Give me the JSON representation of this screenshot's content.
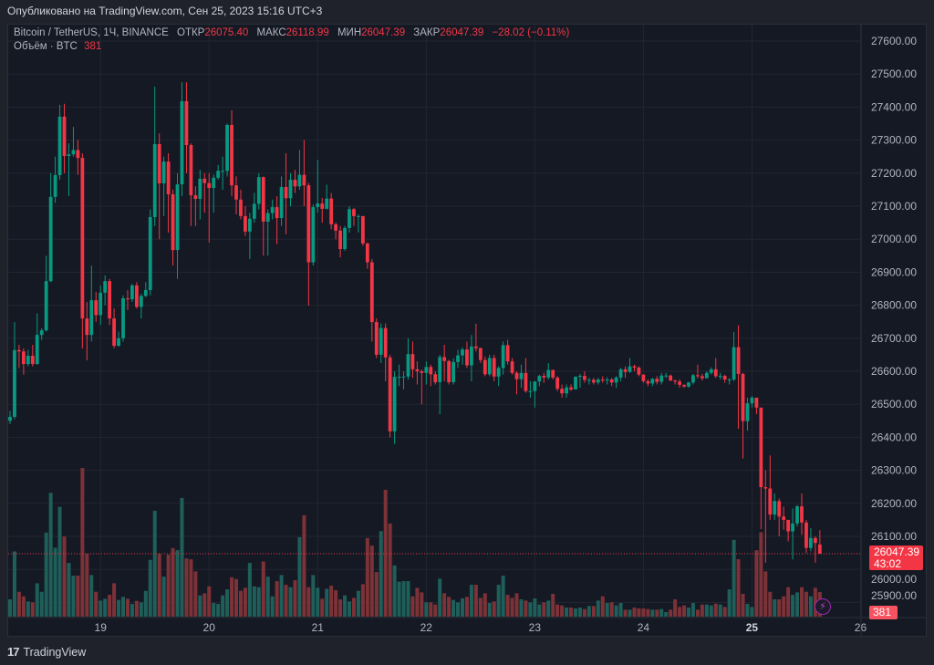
{
  "published": "Опубликовано на TradingView.com, Сен 25, 2023 15:16 UTC+3",
  "legend": {
    "symbol": "Bitcoin / TetherUS, 1Ч, BINANCE",
    "open_label": "ОТКР",
    "open": "26075.40",
    "high_label": "МАКС",
    "high": "26118.99",
    "low_label": "МИН",
    "low": "26047.39",
    "close_label": "ЗАКР",
    "close": "26047.39",
    "change": "−28.02 (−0.11%)",
    "volume_label": "Объём · BTC",
    "volume": "381"
  },
  "price_label": {
    "price": "26047.39",
    "countdown": "43:02"
  },
  "volume_badge": "381",
  "footer": {
    "logo_text": "TradingView"
  },
  "colors": {
    "up": "#089981",
    "down": "#f23645",
    "volume_up": "#1e5f5a",
    "volume_down": "#7d3237",
    "background": "#151924",
    "grid": "#222631",
    "last_price_line": "#f23645",
    "accent_icon": "#9c27b0"
  },
  "icons": {
    "alert": "lightning-icon",
    "logo": "tradingview-logo-icon"
  },
  "chart_data": {
    "type": "candlestick",
    "interval": "1h",
    "y_ticks": [
      "25900.00",
      "26000.00",
      "26100.00",
      "26200.00",
      "26300.00",
      "26400.00",
      "26500.00",
      "26600.00",
      "26700.00",
      "26800.00",
      "26900.00",
      "27000.00",
      "27100.00",
      "27200.00",
      "27300.00",
      "27400.00",
      "27500.00",
      "27600.00"
    ],
    "x_ticks": [
      "19",
      "20",
      "21",
      "22",
      "23",
      "24",
      "25",
      "26"
    ],
    "ylim": [
      25900,
      27600
    ],
    "grid": true,
    "last_price": 26047.39,
    "ohlc": [
      [
        26450,
        26480,
        26440,
        26462
      ],
      [
        26462,
        26749,
        26455,
        26664
      ],
      [
        26664,
        26680,
        26610,
        26660
      ],
      [
        26660,
        26670,
        26590,
        26622
      ],
      [
        26622,
        26665,
        26615,
        26647
      ],
      [
        26647,
        26680,
        26615,
        26622
      ],
      [
        26622,
        26775,
        26620,
        26710
      ],
      [
        26710,
        26730,
        26695,
        26724
      ],
      [
        26724,
        26950,
        26720,
        26873
      ],
      [
        26873,
        27200,
        26870,
        27128
      ],
      [
        27128,
        27250,
        27110,
        27194
      ],
      [
        27194,
        27407,
        27180,
        27371
      ],
      [
        27371,
        27410,
        27200,
        27252
      ],
      [
        27252,
        27290,
        27130,
        27257
      ],
      [
        27257,
        27340,
        27250,
        27270
      ],
      [
        27270,
        27300,
        27195,
        27246
      ],
      [
        27246,
        27260,
        26669,
        26760
      ],
      [
        26760,
        26810,
        26633,
        26710
      ],
      [
        26710,
        26920,
        26690,
        26815
      ],
      [
        26815,
        26840,
        26750,
        26770
      ],
      [
        26770,
        26860,
        26740,
        26838
      ],
      [
        26838,
        26890,
        26800,
        26873
      ],
      [
        26873,
        26880,
        26740,
        26760
      ],
      [
        26760,
        26790,
        26670,
        26677
      ],
      [
        26677,
        26720,
        26675,
        26700
      ],
      [
        26700,
        26830,
        26690,
        26821
      ],
      [
        26821,
        26845,
        26785,
        26818
      ],
      [
        26818,
        26865,
        26810,
        26860
      ],
      [
        26860,
        26870,
        26790,
        26795
      ],
      [
        26795,
        26835,
        26760,
        26828
      ],
      [
        26828,
        26870,
        26825,
        26846
      ],
      [
        26846,
        27090,
        26830,
        27067
      ],
      [
        27067,
        27462,
        27040,
        27288
      ],
      [
        27288,
        27320,
        27000,
        27169
      ],
      [
        27169,
        27250,
        27070,
        27235
      ],
      [
        27235,
        27260,
        27020,
        27136
      ],
      [
        27136,
        27150,
        26920,
        26967
      ],
      [
        26967,
        27200,
        26880,
        27166
      ],
      [
        27166,
        27475,
        27130,
        27418
      ],
      [
        27418,
        27475,
        27200,
        27285
      ],
      [
        27285,
        27290,
        27040,
        27133
      ],
      [
        27133,
        27160,
        27040,
        27122
      ],
      [
        27122,
        27210,
        27060,
        27183
      ],
      [
        27183,
        27200,
        27080,
        27170
      ],
      [
        27170,
        27200,
        26990,
        27155
      ],
      [
        27155,
        27195,
        27080,
        27186
      ],
      [
        27186,
        27225,
        27180,
        27207
      ],
      [
        27207,
        27250,
        27150,
        27207
      ],
      [
        27207,
        27350,
        27190,
        27346
      ],
      [
        27346,
        27390,
        27130,
        27163
      ],
      [
        27163,
        27190,
        27075,
        27120
      ],
      [
        27120,
        27150,
        27060,
        27070
      ],
      [
        27070,
        27100,
        27010,
        27023
      ],
      [
        27023,
        27080,
        26940,
        27062
      ],
      [
        27062,
        27140,
        27050,
        27107
      ],
      [
        27107,
        27200,
        27090,
        27188
      ],
      [
        27188,
        27190,
        26950,
        27053
      ],
      [
        27053,
        27090,
        26950,
        27079
      ],
      [
        27079,
        27120,
        27060,
        27097
      ],
      [
        27097,
        27130,
        26985,
        27064
      ],
      [
        27064,
        27190,
        27040,
        27158
      ],
      [
        27158,
        27260,
        27015,
        27124
      ],
      [
        27124,
        27200,
        27100,
        27180
      ],
      [
        27180,
        27210,
        27140,
        27160
      ],
      [
        27160,
        27270,
        27150,
        27195
      ],
      [
        27195,
        27300,
        27100,
        27163
      ],
      [
        27163,
        27170,
        26799,
        26930
      ],
      [
        26930,
        27105,
        26920,
        27097
      ],
      [
        27097,
        27240,
        27080,
        27108
      ],
      [
        27108,
        27125,
        27050,
        27092
      ],
      [
        27092,
        27165,
        27090,
        27123
      ],
      [
        27123,
        27140,
        27030,
        27045
      ],
      [
        27045,
        27050,
        27000,
        27026
      ],
      [
        27026,
        27040,
        26945,
        26970
      ],
      [
        26970,
        27040,
        26965,
        27034
      ],
      [
        27034,
        27100,
        27020,
        27091
      ],
      [
        27091,
        27095,
        27040,
        27070
      ],
      [
        27070,
        27075,
        27020,
        27070
      ],
      [
        27070,
        27070,
        26980,
        26987
      ],
      [
        26987,
        26990,
        26910,
        26930
      ],
      [
        26930,
        26940,
        26690,
        26749
      ],
      [
        26749,
        26760,
        26640,
        26650
      ],
      [
        26650,
        26745,
        26625,
        26731
      ],
      [
        26731,
        26745,
        26570,
        26642
      ],
      [
        26642,
        26650,
        26400,
        26418
      ],
      [
        26418,
        26600,
        26380,
        26583
      ],
      [
        26583,
        26620,
        26555,
        26583
      ],
      [
        26583,
        26600,
        26545,
        26584
      ],
      [
        26584,
        26700,
        26575,
        26652
      ],
      [
        26652,
        26690,
        26580,
        26606
      ],
      [
        26606,
        26630,
        26560,
        26600
      ],
      [
        26600,
        26605,
        26500,
        26595
      ],
      [
        26595,
        26630,
        26560,
        26613
      ],
      [
        26613,
        26620,
        26555,
        26591
      ],
      [
        26591,
        26600,
        26560,
        26567
      ],
      [
        26567,
        26650,
        26470,
        26643
      ],
      [
        26643,
        26680,
        26570,
        26631
      ],
      [
        26631,
        26635,
        26560,
        26567
      ],
      [
        26567,
        26640,
        26560,
        26628
      ],
      [
        26628,
        26665,
        26610,
        26648
      ],
      [
        26648,
        26672,
        26620,
        26666
      ],
      [
        26666,
        26690,
        26610,
        26618
      ],
      [
        26618,
        26710,
        26570,
        26675
      ],
      [
        26675,
        26744,
        26660,
        26670
      ],
      [
        26670,
        26672,
        26625,
        26634
      ],
      [
        26634,
        26645,
        26585,
        26591
      ],
      [
        26591,
        26650,
        26585,
        26640
      ],
      [
        26640,
        26650,
        26570,
        26584
      ],
      [
        26584,
        26615,
        26555,
        26610
      ],
      [
        26610,
        26690,
        26590,
        26679
      ],
      [
        26679,
        26695,
        26620,
        26630
      ],
      [
        26630,
        26640,
        26590,
        26595
      ],
      [
        26595,
        26600,
        26530,
        26576
      ],
      [
        26576,
        26620,
        26550,
        26595
      ],
      [
        26595,
        26640,
        26535,
        26540
      ],
      [
        26540,
        26570,
        26520,
        26540
      ],
      [
        26540,
        26570,
        26490,
        26569
      ],
      [
        26569,
        26590,
        26555,
        26586
      ],
      [
        26586,
        26595,
        26565,
        26581
      ],
      [
        26581,
        26625,
        26575,
        26604
      ],
      [
        26604,
        26605,
        26575,
        26581
      ],
      [
        26581,
        26585,
        26540,
        26547
      ],
      [
        26547,
        26560,
        26520,
        26533
      ],
      [
        26533,
        26560,
        26520,
        26551
      ],
      [
        26551,
        26560,
        26540,
        26545
      ],
      [
        26545,
        26585,
        26545,
        26583
      ],
      [
        26583,
        26592,
        26550,
        26586
      ],
      [
        26586,
        26600,
        26565,
        26574
      ],
      [
        26574,
        26580,
        26560,
        26574
      ],
      [
        26574,
        26580,
        26560,
        26566
      ],
      [
        26566,
        26580,
        26560,
        26575
      ],
      [
        26575,
        26585,
        26565,
        26573
      ],
      [
        26573,
        26582,
        26560,
        26575
      ],
      [
        26575,
        26580,
        26555,
        26566
      ],
      [
        26566,
        26585,
        26550,
        26581
      ],
      [
        26581,
        26610,
        26570,
        26606
      ],
      [
        26606,
        26615,
        26580,
        26598
      ],
      [
        26598,
        26640,
        26595,
        26615
      ],
      [
        26615,
        26620,
        26600,
        26611
      ],
      [
        26611,
        26615,
        26585,
        26590
      ],
      [
        26590,
        26590,
        26565,
        26570
      ],
      [
        26570,
        26575,
        26555,
        26563
      ],
      [
        26563,
        26580,
        26555,
        26577
      ],
      [
        26577,
        26585,
        26560,
        26568
      ],
      [
        26568,
        26595,
        26560,
        26587
      ],
      [
        26587,
        26595,
        26580,
        26587
      ],
      [
        26587,
        26590,
        26570,
        26572
      ],
      [
        26572,
        26575,
        26560,
        26569
      ],
      [
        26569,
        26575,
        26550,
        26559
      ],
      [
        26559,
        26560,
        26550,
        26554
      ],
      [
        26554,
        26568,
        26550,
        26566
      ],
      [
        26566,
        26592,
        26560,
        26588
      ],
      [
        26588,
        26620,
        26578,
        26585
      ],
      [
        26585,
        26592,
        26572,
        26579
      ],
      [
        26579,
        26600,
        26578,
        26595
      ],
      [
        26595,
        26612,
        26590,
        26606
      ],
      [
        26606,
        26640,
        26580,
        26585
      ],
      [
        26585,
        26595,
        26575,
        26586
      ],
      [
        26586,
        26590,
        26565,
        26575
      ],
      [
        26575,
        26580,
        26560,
        26575
      ],
      [
        26575,
        26719,
        26570,
        26673
      ],
      [
        26673,
        26739,
        26426,
        26592
      ],
      [
        26592,
        26595,
        26336,
        26449
      ],
      [
        26449,
        26520,
        26420,
        26503
      ],
      [
        26503,
        26525,
        26490,
        26520
      ],
      [
        26520,
        26520,
        26470,
        26490
      ],
      [
        26490,
        26490,
        26122,
        26249
      ],
      [
        26249,
        26300,
        26020,
        26245
      ],
      [
        26245,
        26345,
        26150,
        26166
      ],
      [
        26166,
        26230,
        26150,
        26207
      ],
      [
        26207,
        26215,
        26100,
        26160
      ],
      [
        26160,
        26190,
        26120,
        26150
      ],
      [
        26150,
        26150,
        26085,
        26115
      ],
      [
        26115,
        26185,
        26030,
        26139
      ],
      [
        26139,
        26195,
        26130,
        26191
      ],
      [
        26191,
        26230,
        26105,
        26142
      ],
      [
        26142,
        26150,
        26050,
        26065
      ],
      [
        26065,
        26125,
        26055,
        26095
      ],
      [
        26095,
        26100,
        26020,
        26080
      ],
      [
        26075.4,
        26118.99,
        26047.39,
        26047.39
      ]
    ],
    "volume": [
      268,
      1011,
      385,
      315,
      235,
      221,
      517,
      385,
      1302,
      1918,
      1067,
      1701,
      1241,
      832,
      635,
      635,
      2303,
      973,
      644,
      385,
      249,
      277,
      338,
      517,
      259,
      306,
      277,
      197,
      244,
      221,
      400,
      879,
      1640,
      973,
      620,
      959,
      1062,
      1029,
      1838,
      902,
      888,
      700,
      329,
      362,
      470,
      212,
      197,
      329,
      423,
      611,
      583,
      400,
      447,
      832,
      470,
      456,
      855,
      620,
      315,
      550,
      644,
      494,
      456,
      564,
      1231,
      1570,
      456,
      644,
      447,
      277,
      432,
      479,
      409,
      268,
      329,
      235,
      291,
      400,
      503,
      1217,
      1100,
      691,
      1325,
      1965,
      1443,
      794,
      541,
      550,
      550,
      315,
      447,
      376,
      221,
      221,
      188,
      588,
      362,
      306,
      259,
      221,
      282,
      306,
      494,
      494,
      291,
      362,
      212,
      235,
      494,
      635,
      338,
      291,
      362,
      268,
      249,
      221,
      282,
      188,
      221,
      249,
      353,
      188,
      174,
      141,
      141,
      127,
      141,
      118,
      165,
      165,
      249,
      315,
      212,
      221,
      174,
      212,
      108,
      108,
      141,
      127,
      127,
      118,
      108,
      108,
      118,
      71,
      108,
      268,
      150,
      174,
      141,
      212,
      108,
      188,
      188,
      174,
      202,
      188,
      150,
      423,
      1189,
      888,
      353,
      197,
      150,
      1029,
      1307,
      700,
      385,
      268,
      268,
      315,
      456,
      338,
      376,
      456,
      385,
      315,
      447,
      381
    ]
  }
}
